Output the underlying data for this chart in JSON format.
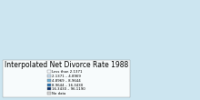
{
  "title": "Interpolated Net Divorce Rate 1988",
  "title_fontsize": 5.5,
  "background_color": "#cce5f0",
  "land_default_color": "#f5f0d8",
  "ocean_color": "#cce5f0",
  "legend_entries": [
    {
      "label": "Less than 2.1371",
      "color": "#f7fbff"
    },
    {
      "label": "2.1371 – 4.8969",
      "color": "#c6dbef"
    },
    {
      "label": "4.8969 – 8.9644",
      "color": "#6baed6"
    },
    {
      "label": "8.9644 – 16.3430",
      "color": "#2171b5"
    },
    {
      "label": "16.3430 – 96.1190",
      "color": "#08306b"
    },
    {
      "label": "No data",
      "color": "#d3d3d3"
    }
  ],
  "country_colors": {
    "United States of America": "#08306b",
    "Canada": "#2171b5",
    "Cuba": "#6baed6",
    "Russia": "#6baed6",
    "Australia": "#6baed6",
    "New Zealand": "#6baed6",
    "United Kingdom": "#2171b5",
    "Germany": "#2171b5",
    "France": "#6baed6",
    "Sweden": "#2171b5",
    "Norway": "#2171b5",
    "Denmark": "#2171b5",
    "Finland": "#2171b5",
    "Netherlands": "#2171b5",
    "Belgium": "#6baed6",
    "Austria": "#6baed6",
    "Switzerland": "#6baed6",
    "Czech Republic": "#6baed6",
    "Hungary": "#6baed6",
    "Belarus": "#6baed6",
    "Ukraine": "#6baed6",
    "Estonia": "#2171b5",
    "Latvia": "#2171b5",
    "Lithuania": "#6baed6",
    "Moldova": "#6baed6",
    "Kazakhstan": "#6baed6",
    "Kyrgyzstan": "#6baed6",
    "Azerbaijan": "#6baed6",
    "Georgia": "#6baed6",
    "Armenia": "#6baed6",
    "Tajikistan": "#6baed6",
    "Turkmenistan": "#6baed6",
    "Uzbekistan": "#6baed6",
    "Israel": "#6baed6",
    "Japan": "#c6dbef",
    "South Korea": "#c6dbef",
    "Puerto Rico": "#08306b",
    "Greenland": "#c6dbef"
  }
}
